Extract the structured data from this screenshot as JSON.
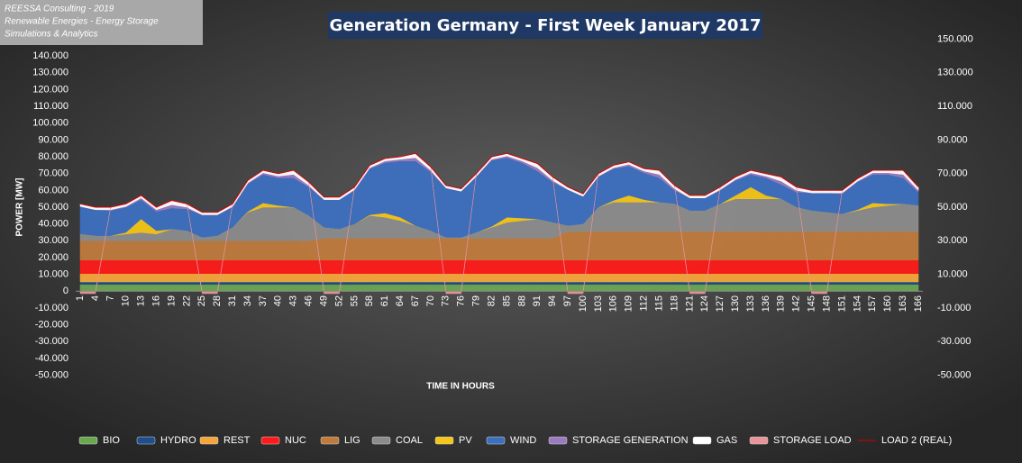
{
  "header": {
    "lines": [
      "REESSA Consulting - 2019",
      "Renewable Energies - Energy Storage",
      "Simulations & Analytics"
    ]
  },
  "chart_data": {
    "type": "area",
    "stacked": true,
    "title": "Generation Germany - First Week January 2017",
    "x_label": "TIME IN HOURS",
    "y_label": "POWER [MW]",
    "x": [
      1,
      4,
      7,
      10,
      13,
      16,
      19,
      22,
      25,
      28,
      31,
      34,
      37,
      40,
      43,
      46,
      49,
      52,
      55,
      58,
      61,
      64,
      67,
      70,
      73,
      76,
      79,
      82,
      85,
      88,
      91,
      94,
      97,
      100,
      103,
      106,
      109,
      112,
      115,
      118,
      121,
      124,
      127,
      130,
      133,
      136,
      139,
      142,
      145,
      148,
      151,
      154,
      157,
      160,
      163,
      166
    ],
    "xlim": [
      1,
      166
    ],
    "xticks": [
      1,
      4,
      7,
      10,
      13,
      16,
      19,
      22,
      25,
      28,
      31,
      34,
      37,
      40,
      43,
      46,
      49,
      52,
      55,
      58,
      61,
      64,
      67,
      70,
      73,
      76,
      79,
      82,
      85,
      88,
      91,
      94,
      97,
      100,
      103,
      106,
      109,
      112,
      115,
      118,
      121,
      124,
      127,
      130,
      133,
      136,
      139,
      142,
      145,
      148,
      151,
      154,
      157,
      160,
      163,
      166
    ],
    "ylim": [
      -50000,
      150000
    ],
    "yticks": [
      {
        "value": 140000,
        "label": "140.000"
      },
      {
        "value": 130000,
        "label": "130.000"
      },
      {
        "value": 120000,
        "label": "120.000"
      },
      {
        "value": 110000,
        "label": "110.000"
      },
      {
        "value": 100000,
        "label": "100.000"
      },
      {
        "value": 90000,
        "label": "90.000"
      },
      {
        "value": 80000,
        "label": "80.000"
      },
      {
        "value": 70000,
        "label": "70.000"
      },
      {
        "value": 60000,
        "label": "60.000"
      },
      {
        "value": 50000,
        "label": "50.000"
      },
      {
        "value": 40000,
        "label": "40.000"
      },
      {
        "value": 30000,
        "label": "30.000"
      },
      {
        "value": 20000,
        "label": "20.000"
      },
      {
        "value": 10000,
        "label": "10.000"
      },
      0,
      {
        "value": -10000,
        "label": "-10.000"
      },
      {
        "value": -20000,
        "label": "-20.000"
      },
      {
        "value": -30000,
        "label": "-30.000"
      },
      {
        "value": -40000,
        "label": "-40.000"
      },
      {
        "value": -50000,
        "label": "-50.000"
      }
    ],
    "y2lim": [
      -50000,
      150000
    ],
    "y2ticks": [
      {
        "value": 150000,
        "label": "150.000"
      },
      {
        "value": 130000,
        "label": "130.000"
      },
      {
        "value": 110000,
        "label": "110.000"
      },
      {
        "value": 90000,
        "label": "90.000"
      },
      {
        "value": 70000,
        "label": "70.000"
      },
      {
        "value": 50000,
        "label": "50.000"
      },
      {
        "value": 30000,
        "label": "30.000"
      },
      {
        "value": 10000,
        "label": "10.000"
      },
      {
        "value": -10000,
        "label": "-10.000"
      },
      {
        "value": -30000,
        "label": "-30.000"
      },
      {
        "value": -50000,
        "label": "-50.000"
      }
    ],
    "series": [
      {
        "name": "BIO",
        "color": "#6aa84f",
        "values": [
          4000,
          4000,
          4000,
          4000,
          4000,
          4000,
          4000,
          4000,
          4000,
          4000,
          4000,
          4000,
          4000,
          4000,
          4000,
          4000,
          4000,
          4000,
          4000,
          4000,
          4000,
          4000,
          4000,
          4000,
          4000,
          4000,
          4000,
          4000,
          4000,
          4000,
          4000,
          4000,
          4000,
          4000,
          4000,
          4000,
          4000,
          4000,
          4000,
          4000,
          4000,
          4000,
          4000,
          4000,
          4000,
          4000,
          4000,
          4000,
          4000,
          4000,
          4000,
          4000,
          4000,
          4000,
          4000,
          4000
        ]
      },
      {
        "name": "HYDRO",
        "color": "#1f4e8c",
        "values": [
          1500,
          1500,
          1500,
          1500,
          1500,
          1500,
          1500,
          1500,
          1500,
          1500,
          1500,
          1500,
          1500,
          1500,
          1500,
          1500,
          1500,
          1500,
          1500,
          1500,
          1500,
          1500,
          1500,
          1500,
          1500,
          1500,
          1500,
          1500,
          1500,
          1500,
          1500,
          1500,
          1500,
          1500,
          1500,
          1500,
          1500,
          1500,
          1500,
          1500,
          1500,
          1500,
          1500,
          1500,
          1500,
          1500,
          1500,
          1500,
          1500,
          1500,
          1500,
          1500,
          1500,
          1500,
          1500,
          1500
        ]
      },
      {
        "name": "REST",
        "color": "#f4a63a",
        "values": [
          5000,
          5000,
          5000,
          5000,
          5000,
          5000,
          5000,
          5000,
          5000,
          5000,
          5000,
          5000,
          5000,
          5000,
          5000,
          5000,
          5000,
          5000,
          5000,
          5000,
          5000,
          5000,
          5000,
          5000,
          5000,
          5000,
          5000,
          5000,
          5000,
          5000,
          5000,
          5000,
          5000,
          5000,
          5000,
          5000,
          5000,
          5000,
          5000,
          5000,
          5000,
          5000,
          5000,
          5000,
          5000,
          5000,
          5000,
          5000,
          5000,
          5000,
          5000,
          5000,
          5000,
          5000,
          5000,
          5000
        ]
      },
      {
        "name": "NUC",
        "color": "#ff1a1a",
        "values": [
          8000,
          8000,
          8000,
          8000,
          8000,
          8000,
          8000,
          8000,
          8000,
          8000,
          8000,
          8000,
          8000,
          8000,
          8000,
          8000,
          8000,
          8000,
          8000,
          8000,
          8000,
          8000,
          8000,
          8000,
          8000,
          8000,
          8000,
          8000,
          8000,
          8000,
          8000,
          8000,
          8000,
          8000,
          8000,
          8000,
          8000,
          8000,
          8000,
          8000,
          8000,
          8000,
          8000,
          8000,
          8000,
          8000,
          8000,
          8000,
          8000,
          8000,
          8000,
          8000,
          8000,
          8000,
          8000,
          8000
        ]
      },
      {
        "name": "LIG",
        "color": "#bf7a3c",
        "values": [
          11500,
          11500,
          11500,
          11500,
          11500,
          11500,
          11500,
          11500,
          11500,
          11500,
          11500,
          11500,
          11500,
          11500,
          11500,
          11500,
          13000,
          13000,
          13000,
          13000,
          13000,
          13000,
          13000,
          13000,
          13000,
          13000,
          13000,
          13000,
          13000,
          13000,
          13000,
          13000,
          17000,
          17000,
          17000,
          17000,
          17000,
          17000,
          17000,
          17000,
          17000,
          17000,
          17000,
          17000,
          17000,
          17000,
          17000,
          17000,
          17000,
          17000,
          17000,
          17000,
          17000,
          17000,
          17000,
          17000
        ]
      },
      {
        "name": "COAL",
        "color": "#8c8c8c",
        "values": [
          4000,
          3000,
          3000,
          4000,
          5000,
          4000,
          7000,
          6000,
          2000,
          3000,
          8000,
          17000,
          20000,
          20000,
          20000,
          15000,
          6500,
          5500,
          8500,
          13500,
          12500,
          10500,
          7500,
          4500,
          500,
          500,
          3500,
          6500,
          9500,
          10500,
          11500,
          9500,
          3500,
          4500,
          14500,
          17500,
          17500,
          17500,
          17500,
          16500,
          12500,
          12500,
          16500,
          19500,
          19500,
          19500,
          19500,
          14500,
          12500,
          11500,
          10500,
          12500,
          14500,
          15500,
          16500,
          15500
        ]
      },
      {
        "name": "PV",
        "color": "#f5c518",
        "values": [
          0,
          0,
          0,
          1000,
          8000,
          2000,
          0,
          0,
          0,
          0,
          0,
          500,
          2500,
          1000,
          0,
          0,
          0,
          0,
          0,
          500,
          2500,
          2000,
          0,
          0,
          0,
          0,
          0,
          500,
          3000,
          1500,
          0,
          0,
          0,
          0,
          0,
          1000,
          4000,
          1500,
          0,
          0,
          0,
          0,
          0,
          2000,
          7000,
          2000,
          0,
          0,
          0,
          0,
          0,
          500,
          2500,
          1000,
          0,
          0
        ]
      },
      {
        "name": "WIND",
        "color": "#3d6fbf",
        "values": [
          16500,
          15500,
          15000,
          15000,
          11500,
          11500,
          12500,
          13000,
          13500,
          12500,
          12000,
          16500,
          17000,
          16500,
          17500,
          17000,
          16500,
          17500,
          20000,
          27500,
          30000,
          33500,
          38500,
          35000,
          29500,
          27500,
          33000,
          39500,
          35500,
          33000,
          28500,
          24000,
          21500,
          16500,
          18000,
          19000,
          17500,
          16000,
          14500,
          8000,
          7500,
          7500,
          8000,
          9000,
          7500,
          10500,
          8500,
          9000,
          10500,
          11500,
          12000,
          16500,
          17000,
          17500,
          15500,
          8000
        ]
      },
      {
        "name": "STORAGE GENERATION",
        "color": "#9b7bbf",
        "values": [
          0,
          0,
          500,
          500,
          1000,
          1000,
          2000,
          1000,
          0,
          0,
          500,
          500,
          1000,
          1000,
          2000,
          1000,
          0,
          0,
          500,
          500,
          1000,
          1000,
          2000,
          1000,
          0,
          0,
          500,
          500,
          1000,
          1000,
          2000,
          1000,
          0,
          0,
          500,
          500,
          1000,
          1000,
          2000,
          1000,
          0,
          0,
          500,
          500,
          1000,
          1000,
          2000,
          1000,
          0,
          0,
          500,
          500,
          1000,
          1000,
          2000,
          1000
        ]
      },
      {
        "name": "GAS",
        "color": "#ffffff",
        "values": [
          1500,
          1500,
          1500,
          1500,
          1500,
          1500,
          2500,
          2000,
          1500,
          1500,
          1500,
          1500,
          1500,
          1500,
          2500,
          2000,
          1500,
          1500,
          1500,
          1500,
          1500,
          1500,
          2500,
          2000,
          1500,
          1500,
          1500,
          1500,
          1500,
          1500,
          2500,
          2000,
          1500,
          1500,
          1500,
          1500,
          1500,
          1500,
          2500,
          2000,
          1500,
          1500,
          1500,
          1500,
          1500,
          1500,
          2500,
          2000,
          1500,
          1500,
          1500,
          1500,
          1500,
          1500,
          2500,
          2000
        ]
      },
      {
        "name": "STORAGE LOAD",
        "color": "#e8949a",
        "values": [
          -1500,
          -1500,
          0,
          0,
          0,
          0,
          0,
          0,
          -1500,
          -1500,
          0,
          0,
          0,
          0,
          0,
          0,
          -1500,
          -1500,
          0,
          0,
          0,
          0,
          0,
          0,
          -1500,
          -1500,
          0,
          0,
          0,
          0,
          0,
          0,
          -1500,
          -1500,
          0,
          0,
          0,
          0,
          0,
          0,
          -1500,
          -1500,
          0,
          0,
          0,
          0,
          0,
          0,
          -1500,
          -1500,
          0,
          0,
          0,
          0,
          0,
          0
        ]
      },
      {
        "name": "LOAD 2 (REAL)",
        "color": "#d00000",
        "type": "line",
        "values": [
          52000,
          50000,
          50000,
          52000,
          57000,
          50000,
          54000,
          52000,
          47000,
          47000,
          52000,
          66000,
          72000,
          70000,
          72000,
          65000,
          56000,
          56000,
          62000,
          75000,
          79000,
          80000,
          82000,
          74000,
          63000,
          61000,
          70000,
          80000,
          82000,
          79000,
          76000,
          68000,
          62000,
          58000,
          70000,
          75000,
          77000,
          73000,
          72000,
          63000,
          57000,
          57000,
          62000,
          68000,
          72000,
          70000,
          68000,
          62000,
          60000,
          60000,
          60000,
          67000,
          72000,
          72000,
          72000,
          62000
        ]
      }
    ]
  }
}
